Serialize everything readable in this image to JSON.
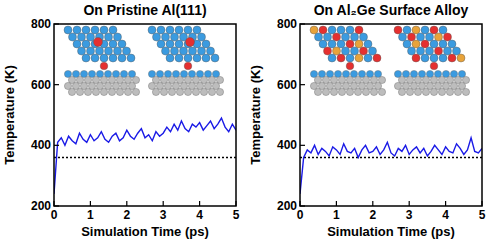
{
  "chart_data": [
    {
      "type": "line",
      "title": "On Pristine Al(111)",
      "x_label": "Simulation Time (ps)",
      "y_label": "Temperature (K)",
      "x": [
        0,
        0.1,
        0.2,
        0.3,
        0.4,
        0.5,
        0.6,
        0.7,
        0.8,
        0.9,
        1,
        1.1,
        1.2,
        1.3,
        1.4,
        1.5,
        1.6,
        1.7,
        1.8,
        1.9,
        2,
        2.1,
        2.2,
        2.3,
        2.4,
        2.5,
        2.6,
        2.7,
        2.8,
        2.9,
        3,
        3.1,
        3.2,
        3.3,
        3.4,
        3.5,
        3.6,
        3.7,
        3.8,
        3.9,
        4,
        4.1,
        4.2,
        4.3,
        4.4,
        4.5,
        4.6,
        4.7,
        4.8,
        4.9,
        5
      ],
      "values": [
        240,
        410,
        425,
        400,
        430,
        415,
        405,
        440,
        420,
        410,
        435,
        415,
        425,
        445,
        420,
        410,
        430,
        440,
        415,
        425,
        450,
        430,
        420,
        440,
        455,
        425,
        435,
        415,
        445,
        430,
        440,
        460,
        445,
        470,
        450,
        480,
        455,
        445,
        470,
        460,
        475,
        450,
        465,
        480,
        455,
        470,
        490,
        460,
        445,
        470,
        450
      ],
      "color": "#1a1ae6",
      "hline": 360,
      "xlim": [
        0,
        5
      ],
      "xticks": [
        0,
        1,
        2,
        3,
        4,
        5
      ],
      "ylim": [
        200,
        800
      ],
      "yticks": [
        200,
        400,
        600,
        800
      ],
      "grid": false
    },
    {
      "type": "line",
      "title": "On Al₂Ge Surface Alloy",
      "x_label": "Simulation Time (ps)",
      "y_label": "Temperature (K)",
      "x": [
        0,
        0.1,
        0.2,
        0.3,
        0.4,
        0.5,
        0.6,
        0.7,
        0.8,
        0.9,
        1,
        1.1,
        1.2,
        1.3,
        1.4,
        1.5,
        1.6,
        1.7,
        1.8,
        1.9,
        2,
        2.1,
        2.2,
        2.3,
        2.4,
        2.5,
        2.6,
        2.7,
        2.8,
        2.9,
        3,
        3.1,
        3.2,
        3.3,
        3.4,
        3.5,
        3.6,
        3.7,
        3.8,
        3.9,
        4,
        4.1,
        4.2,
        4.3,
        4.4,
        4.5,
        4.6,
        4.7,
        4.8,
        4.9,
        5
      ],
      "values": [
        240,
        360,
        385,
        375,
        400,
        370,
        390,
        380,
        365,
        395,
        385,
        370,
        405,
        380,
        375,
        390,
        360,
        385,
        400,
        375,
        380,
        395,
        370,
        385,
        410,
        375,
        365,
        390,
        380,
        400,
        370,
        385,
        395,
        375,
        390,
        365,
        380,
        400,
        385,
        370,
        395,
        380,
        375,
        405,
        390,
        370,
        385,
        425,
        380,
        375,
        390
      ],
      "color": "#1a1ae6",
      "hline": 360,
      "xlim": [
        0,
        5
      ],
      "xticks": [
        0,
        1,
        2,
        3,
        4,
        5
      ],
      "ylim": [
        200,
        800
      ],
      "yticks": [
        200,
        400,
        600,
        800
      ],
      "grid": false
    }
  ]
}
